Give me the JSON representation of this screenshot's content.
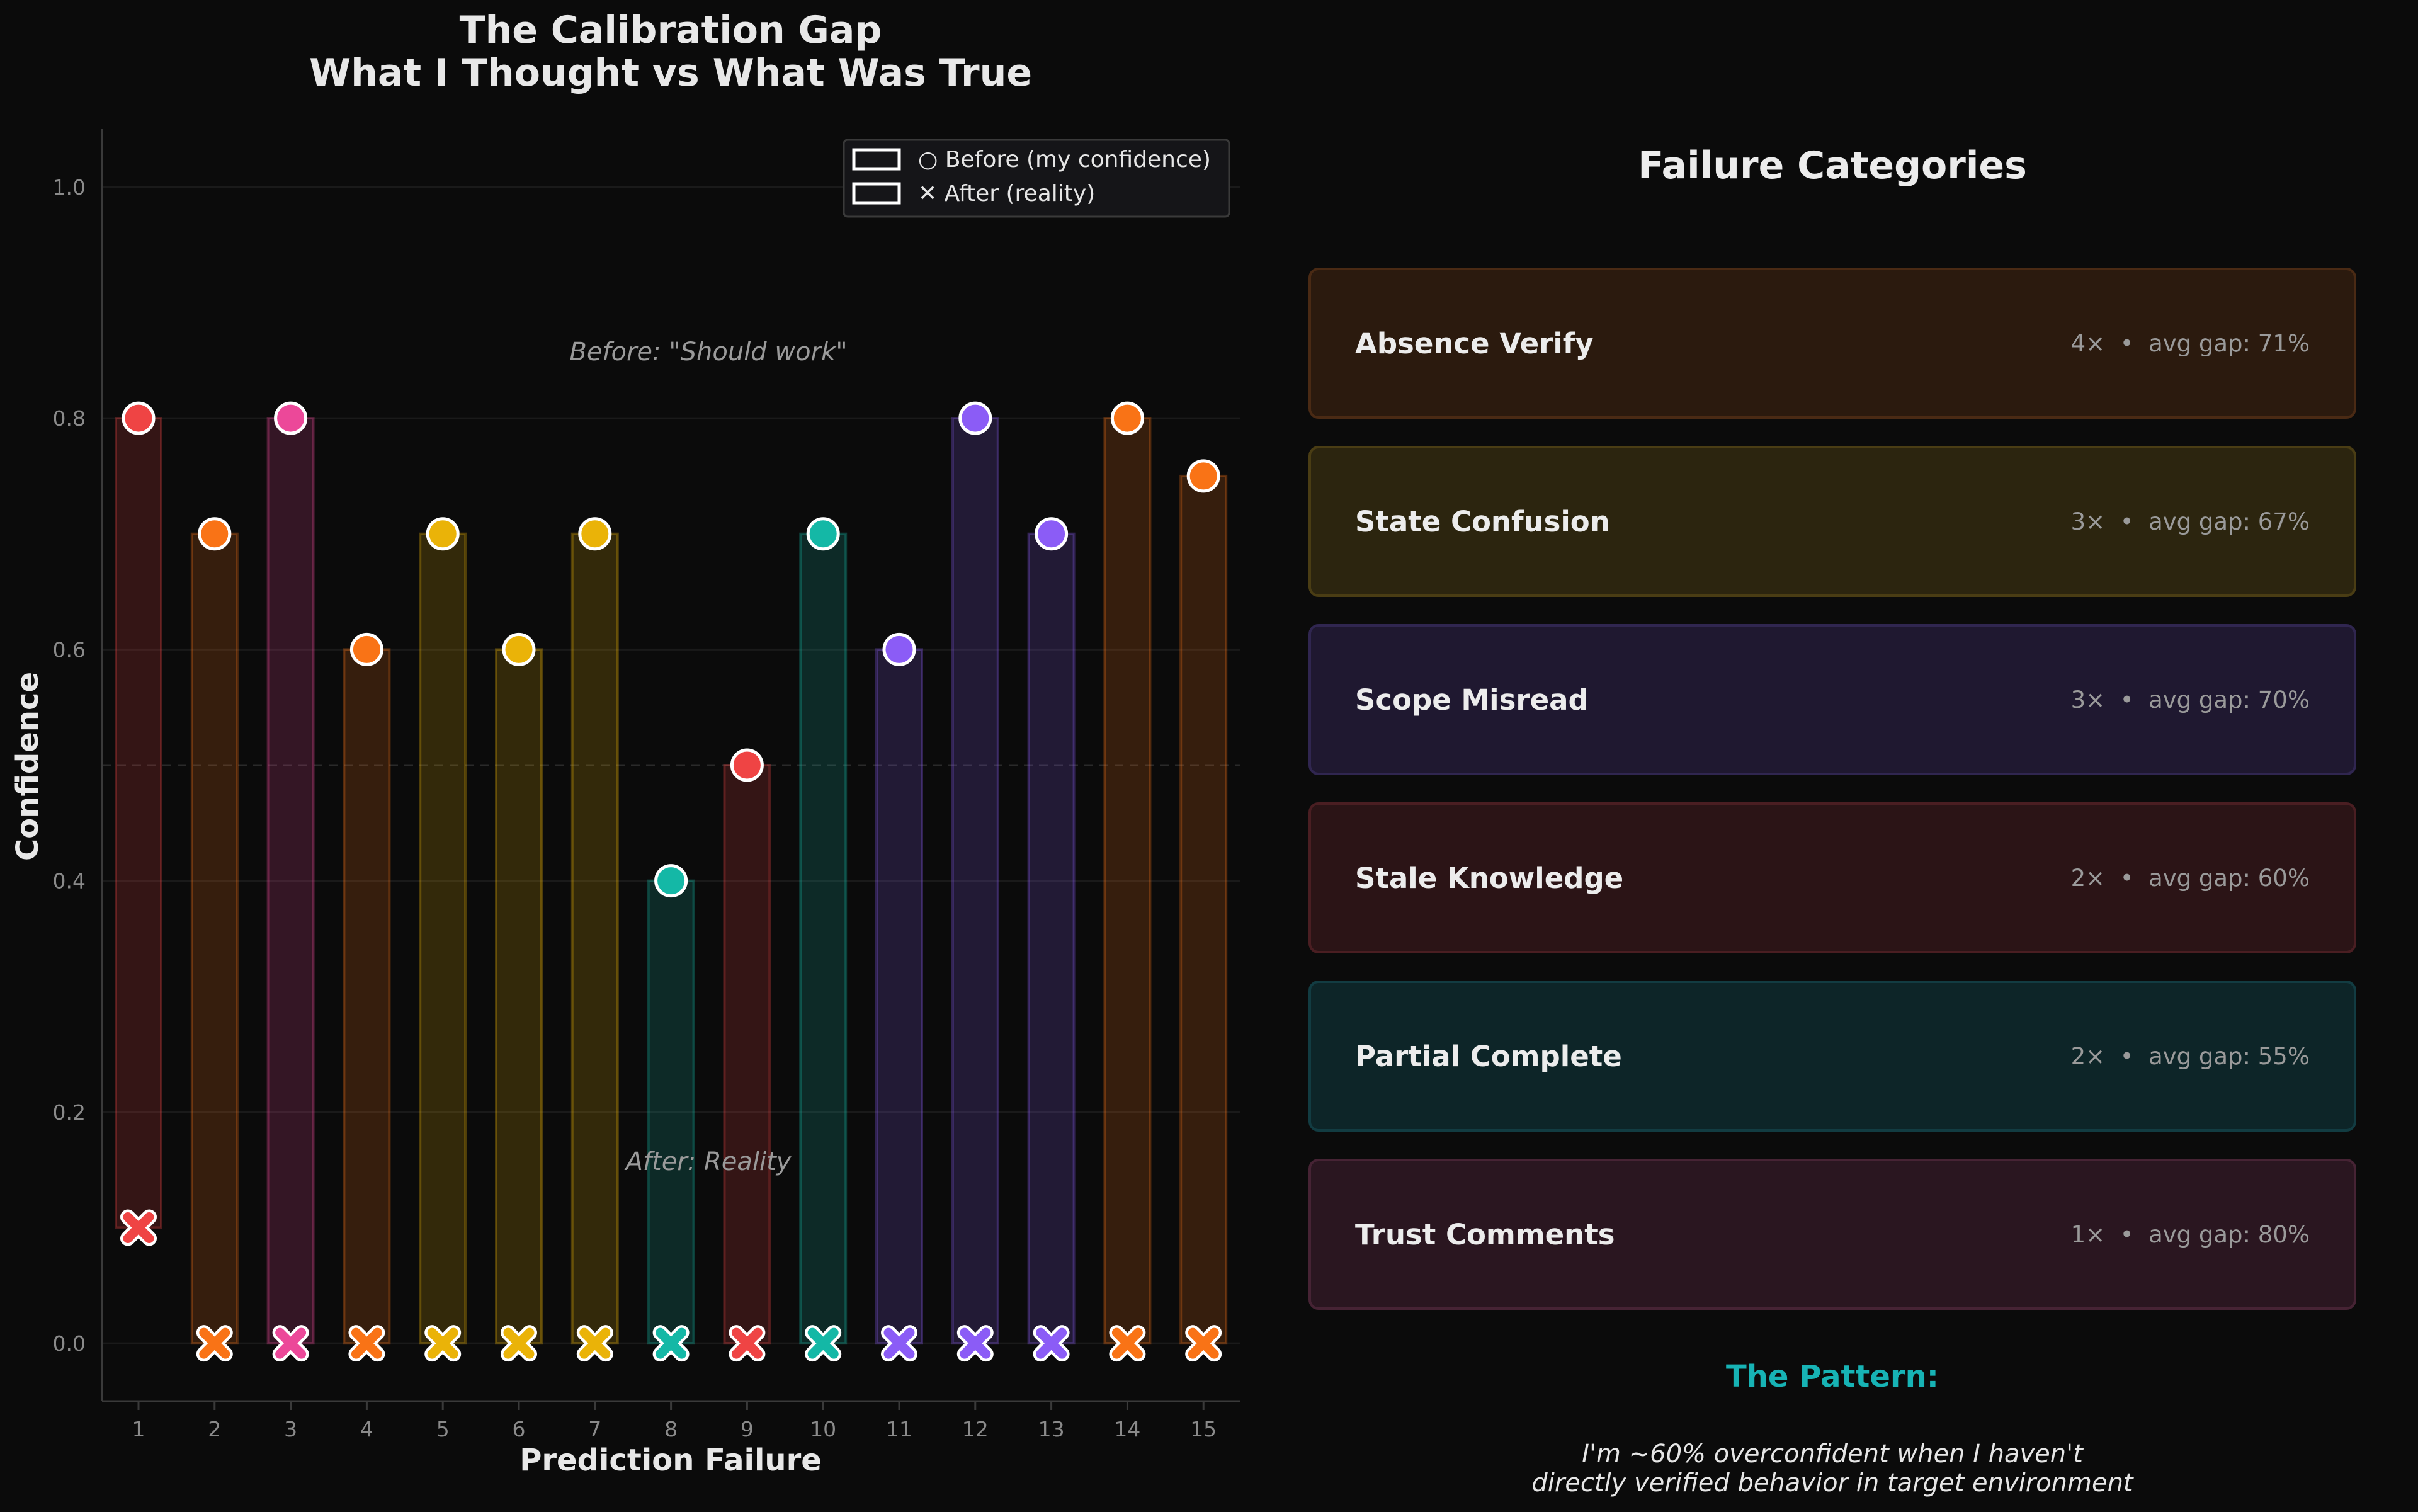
{
  "chart_data": {
    "type": "bar",
    "title_lines": [
      "The Calibration Gap",
      "What I Thought vs What Was True"
    ],
    "xlabel": "Prediction Failure",
    "ylabel": "Confidence",
    "ylim": [
      -0.05,
      1.05
    ],
    "yticks": [
      "0.0",
      "0.2",
      "0.4",
      "0.6",
      "0.8",
      "1.0"
    ],
    "ytick_values": [
      0.0,
      0.2,
      0.4,
      0.6,
      0.8,
      1.0
    ],
    "reference_line": 0.5,
    "grid": true,
    "legend_position": "top-right",
    "categories": [
      "1",
      "2",
      "3",
      "4",
      "5",
      "6",
      "7",
      "8",
      "9",
      "10",
      "11",
      "12",
      "13",
      "14",
      "15"
    ],
    "series": [
      {
        "name": "○ Before (my confidence)",
        "values": [
          0.8,
          0.7,
          0.8,
          0.6,
          0.7,
          0.6,
          0.7,
          0.4,
          0.5,
          0.7,
          0.6,
          0.8,
          0.7,
          0.8,
          0.75
        ]
      },
      {
        "name": "✕ After (reality)",
        "values": [
          0.1,
          0.0,
          0.0,
          0.0,
          0.0,
          0.0,
          0.0,
          0.0,
          0.0,
          0.0,
          0.0,
          0.0,
          0.0,
          0.0,
          0.0
        ]
      }
    ],
    "point_colors": [
      "#ef4444",
      "#f97316",
      "#ec4899",
      "#f97316",
      "#eab308",
      "#eab308",
      "#eab308",
      "#14b8a6",
      "#ef4444",
      "#14b8a6",
      "#8b5cf6",
      "#8b5cf6",
      "#8b5cf6",
      "#f97316",
      "#f97316"
    ],
    "annotations": [
      "Before: \"Should work\"",
      "After: Reality"
    ]
  },
  "panel": {
    "title": "Failure Categories",
    "categories": [
      {
        "name": "Absence Verify",
        "count": "4×",
        "sep": "•",
        "avg_gap": "avg gap: 71%",
        "bg": "#2b1a0e",
        "border": "#4a2a14"
      },
      {
        "name": "State Confusion",
        "count": "3×",
        "sep": "•",
        "avg_gap": "avg gap: 67%",
        "bg": "#2c250f",
        "border": "#4a3d14"
      },
      {
        "name": "Scope Misread",
        "count": "3×",
        "sep": "•",
        "avg_gap": "avg gap: 70%",
        "bg": "#1f1830",
        "border": "#302650"
      },
      {
        "name": "Stale Knowledge",
        "count": "2×",
        "sep": "•",
        "avg_gap": "avg gap: 60%",
        "bg": "#2b1416",
        "border": "#4a1e22"
      },
      {
        "name": "Partial Complete",
        "count": "2×",
        "sep": "•",
        "avg_gap": "avg gap: 55%",
        "bg": "#0d2528",
        "border": "#123c42"
      },
      {
        "name": "Trust Comments",
        "count": "1×",
        "sep": "•",
        "avg_gap": "avg gap: 80%",
        "bg": "#2a1620",
        "border": "#462334"
      }
    ],
    "pattern_title": "The Pattern:",
    "pattern_line1": "I'm ~60% overconfident when I haven't",
    "pattern_line2": "directly verified behavior in target environment"
  }
}
